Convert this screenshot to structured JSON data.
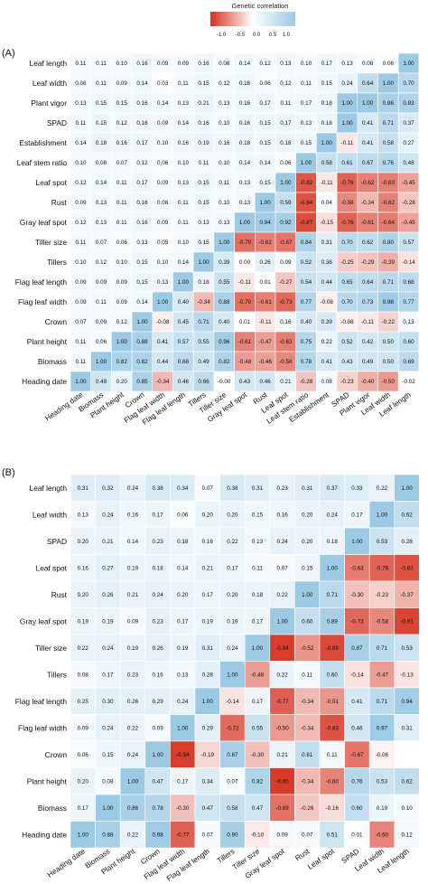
{
  "legend": {
    "title": "Genetic correlation",
    "ticks": [
      "-1.0",
      "-0.5",
      "0.0",
      "0.5",
      "1.0"
    ],
    "colors": {
      "negative": "#d6311e",
      "zero": "#ffffff",
      "positive": "#9ccae4"
    }
  },
  "chart_data": [
    {
      "type": "heatmap",
      "panel_label": "(A)",
      "row_labels": [
        "Leaf length",
        "Leaf width",
        "Plant vigor",
        "SPAD",
        "Establishment",
        "Leaf stem ratio",
        "Leaf spot",
        "Rust",
        "Gray leaf spot",
        "Tiller size",
        "Tillers",
        "Flag leaf length",
        "Flag leaf width",
        "Crown",
        "Plant height",
        "Biomass",
        "Heading date"
      ],
      "col_labels": [
        "Heading date",
        "Biomass",
        "Plant height",
        "Crown",
        "Flag leaf width",
        "Flag leaf length",
        "Tillers",
        "Tiller size",
        "Gray leaf spot",
        "Rust",
        "Leaf spot",
        "Leaf stem ratio",
        "Establishment",
        "SPAD",
        "Plant vigor",
        "Leaf width",
        "Leaf length"
      ],
      "value_labels": [
        [
          "0.11",
          "0.11",
          "0.10",
          "0.16",
          "0.09",
          "0.09",
          "0.16",
          "0.08",
          "0.14",
          "0.12",
          "0.13",
          "0.10",
          "0.17",
          "0.13",
          "0.08",
          "0.06",
          "1.00"
        ],
        [
          "0.08",
          "0.11",
          "0.09",
          "0.14",
          "0.03",
          "0.11",
          "0.15",
          "0.12",
          "0.16",
          "0.06",
          "0.12",
          "0.11",
          "0.15",
          "0.24",
          "0.64",
          "1.00",
          "0.70"
        ],
        [
          "0.13",
          "0.15",
          "0.15",
          "0.16",
          "0.14",
          "0.13",
          "0.21",
          "0.13",
          "0.16",
          "0.17",
          "0.11",
          "0.17",
          "0.18",
          "1.00",
          "1.00",
          "0.86",
          "0.83"
        ],
        [
          "0.11",
          "0.15",
          "0.12",
          "0.16",
          "0.09",
          "0.14",
          "0.16",
          "0.10",
          "0.16",
          "0.15",
          "0.17",
          "0.13",
          "0.18",
          "1.00",
          "0.41",
          "0.71",
          "0.37"
        ],
        [
          "0.14",
          "0.18",
          "0.16",
          "0.17",
          "0.10",
          "0.16",
          "0.19",
          "0.16",
          "0.18",
          "0.15",
          "0.18",
          "0.15",
          "1.00",
          "-0.11",
          "0.41",
          "0.58",
          "0.27"
        ],
        [
          "0.10",
          "0.08",
          "0.07",
          "0.12",
          "0.06",
          "0.10",
          "0.11",
          "0.10",
          "0.14",
          "0.14",
          "0.06",
          "1.00",
          "0.58",
          "0.61",
          "0.67",
          "0.76",
          "0.48"
        ],
        [
          "0.12",
          "0.14",
          "0.11",
          "0.17",
          "0.09",
          "0.13",
          "0.15",
          "0.11",
          "0.13",
          "0.15",
          "1.00",
          "-0.82",
          "-0.11",
          "-0.76",
          "-0.62",
          "-0.63",
          "-0.45"
        ],
        [
          "0.09",
          "0.13",
          "0.11",
          "0.16",
          "0.08",
          "0.11",
          "0.15",
          "0.10",
          "0.13",
          "1.00",
          "0.59",
          "-0.84",
          "0.04",
          "-0.58",
          "-0.34",
          "-0.62",
          "-0.28"
        ],
        [
          "0.12",
          "0.13",
          "0.11",
          "0.16",
          "0.09",
          "0.11",
          "0.13",
          "0.13",
          "1.00",
          "0.94",
          "0.92",
          "-0.87",
          "-0.15",
          "-0.76",
          "-0.61",
          "-0.64",
          "-0.45"
        ],
        [
          "0.11",
          "0.07",
          "0.06",
          "0.13",
          "0.05",
          "0.10",
          "0.15",
          "1.00",
          "-0.70",
          "-0.62",
          "-0.67",
          "0.84",
          "0.31",
          "0.70",
          "0.62",
          "0.80",
          "0.57"
        ],
        [
          "0.10",
          "0.12",
          "0.10",
          "0.15",
          "0.10",
          "0.14",
          "1.00",
          "0.39",
          "0.00",
          "0.26",
          "0.09",
          "0.52",
          "0.36",
          "-0.25",
          "-0.29",
          "-0.39",
          "-0.14"
        ],
        [
          "0.09",
          "0.09",
          "0.09",
          "0.15",
          "0.13",
          "1.00",
          "0.18",
          "0.55",
          "-0.11",
          "0.01",
          "-0.27",
          "0.54",
          "0.44",
          "0.65",
          "0.64",
          "0.71",
          "0.68"
        ],
        [
          "0.09",
          "0.11",
          "0.09",
          "0.14",
          "1.00",
          "0.40",
          "-0.34",
          "0.88",
          "-0.70",
          "-0.61",
          "-0.73",
          "0.77",
          "-0.08",
          "0.70",
          "0.73",
          "0.98",
          "0.77"
        ],
        [
          "0.07",
          "0.09",
          "0.12",
          "1.00",
          "-0.08",
          "0.45",
          "0.71",
          "0.40",
          "0.01",
          "-0.11",
          "0.16",
          "0.40",
          "0.39",
          "-0.08",
          "-0.11",
          "-0.22",
          "0.13"
        ],
        [
          "0.11",
          "0.06",
          "1.00",
          "0.88",
          "0.41",
          "0.57",
          "0.55",
          "0.96",
          "-0.61",
          "-0.47",
          "-0.63",
          "0.75",
          "0.22",
          "0.52",
          "0.42",
          "0.50",
          "0.60"
        ],
        [
          "0.11",
          "1.00",
          "0.82",
          "0.82",
          "0.44",
          "0.68",
          "0.49",
          "0.82",
          "-0.48",
          "-0.46",
          "-0.58",
          "0.78",
          "0.41",
          "0.43",
          "0.49",
          "0.50",
          "0.69"
        ],
        [
          "1.00",
          "0.49",
          "0.20",
          "0.85",
          "-0.34",
          "0.46",
          "0.66",
          "-0.00",
          "0.43",
          "0.46",
          "0.21",
          "-0.28",
          "0.08",
          "-0.23",
          "-0.40",
          "-0.50",
          "-0.02"
        ]
      ]
    },
    {
      "type": "heatmap",
      "panel_label": "(B)",
      "row_labels": [
        "Leaf length",
        "Leaf width",
        "SPAD",
        "Leaf spot",
        "Rust",
        "Gray leaf spot",
        "Tiller size",
        "Tillers",
        "Flag leaf length",
        "Flag leaf width",
        "Crown",
        "Plant height",
        "Biomass",
        "Heading date"
      ],
      "col_labels": [
        "Heading date",
        "Biomass",
        "Plant height",
        "Crown",
        "Flag leaf width",
        "Flag leaf length",
        "Tillers",
        "Tiller size",
        "Gray leaf spot",
        "Rust",
        "Leaf spot",
        "SPAD",
        "Leaf width",
        "Leaf length"
      ],
      "value_labels": [
        [
          "0.31",
          "0.32",
          "0.24",
          "0.38",
          "0.34",
          "0.07",
          "0.38",
          "0.31",
          "0.23",
          "0.31",
          "0.37",
          "0.33",
          "0.22",
          "1.00"
        ],
        [
          "0.13",
          "0.24",
          "0.16",
          "0.17",
          "0.06",
          "0.20",
          "0.20",
          "0.15",
          "0.16",
          "0.20",
          "0.24",
          "0.17",
          "1.00",
          "0.62"
        ],
        [
          "0.20",
          "0.21",
          "0.14",
          "0.23",
          "0.18",
          "0.16",
          "0.22",
          "0.13",
          "0.24",
          "0.20",
          "0.18",
          "1.00",
          "0.53",
          "0.28"
        ],
        [
          "0.16",
          "0.27",
          "0.19",
          "0.18",
          "0.14",
          "0.21",
          "0.17",
          "0.11",
          "0.07",
          "0.15",
          "1.00",
          "-0.63",
          "-0.76",
          "-0.83"
        ],
        [
          "0.20",
          "0.26",
          "0.21",
          "0.24",
          "0.20",
          "0.17",
          "0.20",
          "0.18",
          "0.22",
          "1.00",
          "0.71",
          "-0.30",
          "-0.23",
          "-0.37"
        ],
        [
          "0.19",
          "0.19",
          "0.09",
          "0.23",
          "0.17",
          "0.19",
          "0.19",
          "0.17",
          "1.00",
          "0.60",
          "0.89",
          "-0.73",
          "-0.58",
          "-0.91"
        ],
        [
          "0.22",
          "0.24",
          "0.19",
          "0.26",
          "0.19",
          "0.31",
          "0.24",
          "1.00",
          "-0.94",
          "-0.52",
          "-0.89",
          "0.87",
          "0.71",
          "0.53"
        ],
        [
          "0.08",
          "0.17",
          "0.23",
          "0.16",
          "0.13",
          "0.28",
          "1.00",
          "-0.48",
          "0.22",
          "0.11",
          "0.60",
          "-0.14",
          "-0.47",
          "-0.13"
        ],
        [
          "0.25",
          "0.30",
          "0.26",
          "0.29",
          "0.24",
          "1.00",
          "-0.14",
          "0.17",
          "-0.77",
          "-0.34",
          "-0.51",
          "0.41",
          "0.71",
          "0.94"
        ],
        [
          "0.09",
          "0.24",
          "0.22",
          "0.09",
          "1.00",
          "0.29",
          "-0.72",
          "0.55",
          "-0.50",
          "-0.34",
          "-0.83",
          "0.46",
          "0.97",
          "0.31"
        ],
        [
          "0.06",
          "0.15",
          "0.24",
          "1.00",
          "-0.94",
          "-0.19",
          "0.87",
          "-0.30",
          "0.21",
          "0.61",
          "0.11",
          "-0.67",
          "-0.06",
          ""
        ],
        [
          "0.20",
          "0.08",
          "1.00",
          "0.47",
          "0.17",
          "0.34",
          "0.07",
          "0.82",
          "-0.95",
          "-0.34",
          "-0.60",
          "0.76",
          "0.53",
          "0.62"
        ],
        [
          "0.17",
          "1.00",
          "0.86",
          "0.78",
          "-0.30",
          "0.47",
          "0.58",
          "0.47",
          "-0.69",
          "-0.26",
          "-0.16",
          "0.60",
          "0.19",
          "0.10"
        ],
        [
          "1.00",
          "0.88",
          "0.22",
          "0.98",
          "-0.77",
          "0.07",
          "0.90",
          "-0.10",
          "0.09",
          "0.07",
          "0.51",
          "0.01",
          "-0.60",
          "0.12"
        ]
      ]
    }
  ]
}
